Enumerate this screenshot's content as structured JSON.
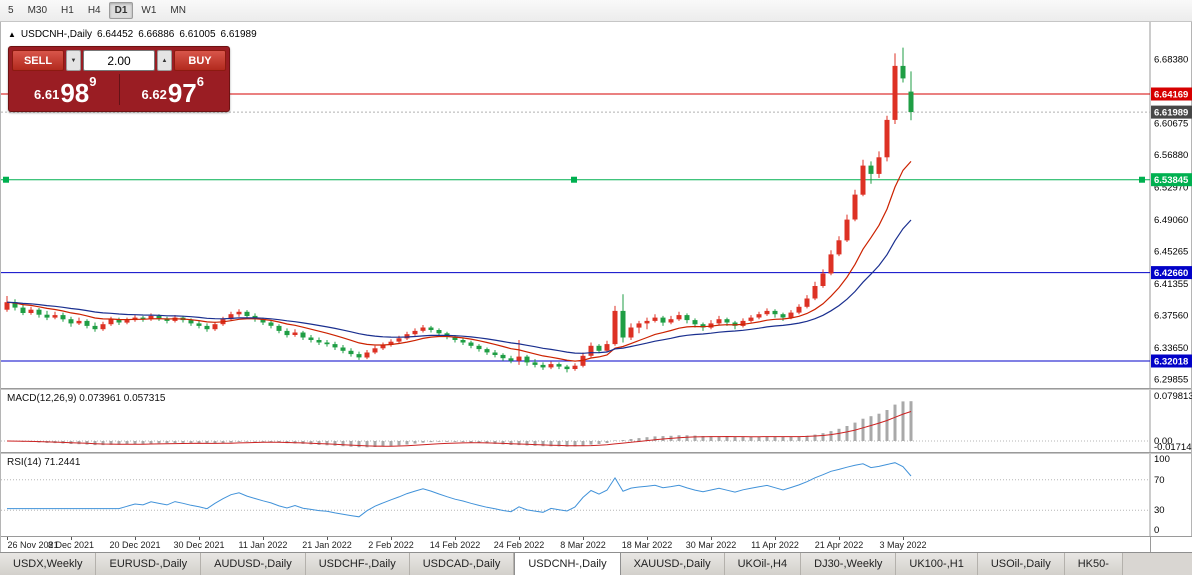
{
  "toolbar": {
    "timeframes": [
      {
        "label": "5",
        "active": false
      },
      {
        "label": "M30",
        "active": false
      },
      {
        "label": "H1",
        "active": false
      },
      {
        "label": "H4",
        "active": false
      },
      {
        "label": "D1",
        "active": true
      },
      {
        "label": "W1",
        "active": false
      },
      {
        "label": "MN",
        "active": false
      }
    ]
  },
  "chart_header": {
    "icon": "▲",
    "symbol": "USDCNH-,Daily",
    "open": "6.64452",
    "high": "6.66886",
    "low": "6.61005",
    "close": "6.61989"
  },
  "trade_panel": {
    "sell_label": "SELL",
    "buy_label": "BUY",
    "lot_value": "2.00",
    "lot_down_icon": "▼",
    "lot_up_icon": "▲",
    "bid": {
      "prefix": "6.61",
      "big": "98",
      "sup": "9"
    },
    "ask": {
      "prefix": "6.62",
      "big": "97",
      "sup": "6"
    }
  },
  "indicators": {
    "macd_label": "MACD(12,26,9) 0.073961 0.057315",
    "rsi_label": "RSI(14) 71.2441"
  },
  "colors": {
    "bull": "#dd3124",
    "bear": "#1f9e44",
    "macd_hist": "#a9a9a9",
    "macd_signal": "#cc2222",
    "rsi_line": "#4192d9"
  },
  "chart_data": {
    "type": "candlestick",
    "title": "USDCNH-,Daily",
    "ohlc_current": {
      "open": 6.64452,
      "high": 6.66886,
      "low": 6.61005,
      "close": 6.61989
    },
    "ylim": [
      6.2878,
      6.7283
    ],
    "x_tick_labels": [
      "26 Nov 2021",
      "8 Dec 2021",
      "20 Dec 2021",
      "30 Dec 2021",
      "11 Jan 2022",
      "21 Jan 2022",
      "2 Feb 2022",
      "14 Feb 2022",
      "24 Feb 2022",
      "8 Mar 2022",
      "18 Mar 2022",
      "30 Mar 2022",
      "11 Apr 2022",
      "21 Apr 2022",
      "3 May 2022"
    ],
    "ticks_every": 8,
    "y_axis_labels": [
      "6.68380",
      "6.60675",
      "6.56880",
      "6.52970",
      "6.49060",
      "6.45265",
      "6.41355",
      "6.37560",
      "6.33650",
      "6.29855"
    ],
    "price_lines": [
      {
        "price": 6.64169,
        "label": "6.64169",
        "line": "#d60000",
        "tag_bg": "#d60000",
        "style": "solid"
      },
      {
        "price": 6.61989,
        "label": "6.61989",
        "line": "#b0b0b0",
        "tag_bg": "#474747",
        "style": "dotted"
      },
      {
        "price": 6.53845,
        "label": "6.53845",
        "line": "#00b050",
        "tag_bg": "#00b050",
        "style": "solid",
        "handles": true
      },
      {
        "price": 6.4266,
        "label": "6.42660",
        "line": "#0202c8",
        "tag_bg": "#0202c8",
        "style": "solid"
      },
      {
        "price": 6.32018,
        "label": "6.32018",
        "line": "#0202c8",
        "tag_bg": "#0202c8",
        "style": "solid"
      }
    ],
    "moving_averages": [
      {
        "period": 12,
        "color": "#cc2200"
      },
      {
        "period": 26,
        "color": "#1a2f8f"
      }
    ],
    "macd": {
      "fast": 12,
      "slow": 26,
      "signal": 9,
      "axis": [
        "0.079813",
        "0.00",
        "-0.01714"
      ],
      "range": [
        -0.01714,
        0.079813
      ]
    },
    "rsi": {
      "period": 14,
      "levels": [
        100,
        70,
        30,
        0
      ],
      "value": 71.2441
    },
    "candles": [
      [
        6.382,
        6.3985,
        6.3795,
        6.391
      ],
      [
        6.391,
        6.3945,
        6.381,
        6.3845
      ],
      [
        6.3845,
        6.389,
        6.3755,
        6.378
      ],
      [
        6.378,
        6.3855,
        6.376,
        6.382
      ],
      [
        6.382,
        6.384,
        6.3725,
        6.376
      ],
      [
        6.376,
        6.3805,
        6.3695,
        6.3725
      ],
      [
        6.3725,
        6.3795,
        6.3705,
        6.3755
      ],
      [
        6.3755,
        6.3785,
        6.3675,
        6.3705
      ],
      [
        6.3705,
        6.3735,
        6.3615,
        6.3655
      ],
      [
        6.3655,
        6.3725,
        6.3635,
        6.3685
      ],
      [
        6.3685,
        6.3705,
        6.3595,
        6.3625
      ],
      [
        6.3625,
        6.3665,
        6.3555,
        6.3585
      ],
      [
        6.3585,
        6.3675,
        6.3565,
        6.3645
      ],
      [
        6.3645,
        6.3735,
        6.3625,
        6.3705
      ],
      [
        6.3705,
        6.3725,
        6.3635,
        6.3665
      ],
      [
        6.3665,
        6.3725,
        6.3645,
        6.3695
      ],
      [
        6.3695,
        6.3755,
        6.3675,
        6.3725
      ],
      [
        6.3725,
        6.3745,
        6.3675,
        6.3705
      ],
      [
        6.3705,
        6.3775,
        6.3685,
        6.3745
      ],
      [
        6.3745,
        6.3765,
        6.3685,
        6.3715
      ],
      [
        6.3715,
        6.3735,
        6.3655,
        6.3685
      ],
      [
        6.3685,
        6.3755,
        6.3665,
        6.3725
      ],
      [
        6.3725,
        6.3745,
        6.3665,
        6.3695
      ],
      [
        6.3695,
        6.3715,
        6.3625,
        6.3655
      ],
      [
        6.3655,
        6.3685,
        6.3595,
        6.3625
      ],
      [
        6.3625,
        6.3655,
        6.3555,
        6.3585
      ],
      [
        6.3585,
        6.3675,
        6.3565,
        6.3645
      ],
      [
        6.3645,
        6.3735,
        6.3625,
        6.3705
      ],
      [
        6.3705,
        6.3795,
        6.3685,
        6.3765
      ],
      [
        6.3765,
        6.3825,
        6.3735,
        6.3795
      ],
      [
        6.3795,
        6.3815,
        6.3715,
        6.3745
      ],
      [
        6.3745,
        6.3775,
        6.3675,
        6.3705
      ],
      [
        6.3705,
        6.3725,
        6.3635,
        6.3665
      ],
      [
        6.3665,
        6.3695,
        6.3595,
        6.3625
      ],
      [
        6.3625,
        6.3645,
        6.3535,
        6.3565
      ],
      [
        6.3565,
        6.3595,
        6.3485,
        6.3515
      ],
      [
        6.3515,
        6.3585,
        6.3495,
        6.3545
      ],
      [
        6.3545,
        6.3565,
        6.3455,
        6.3485
      ],
      [
        6.3485,
        6.3515,
        6.3425,
        6.3455
      ],
      [
        6.3455,
        6.3485,
        6.3395,
        6.3425
      ],
      [
        6.3425,
        6.3455,
        6.3375,
        6.3405
      ],
      [
        6.3405,
        6.3435,
        6.3335,
        6.3365
      ],
      [
        6.3365,
        6.3395,
        6.3295,
        6.3325
      ],
      [
        6.3325,
        6.3355,
        6.3255,
        6.3285
      ],
      [
        6.3285,
        6.3315,
        6.3215,
        6.3245
      ],
      [
        6.3245,
        6.3335,
        6.3225,
        6.3305
      ],
      [
        6.3305,
        6.3385,
        6.3285,
        6.3355
      ],
      [
        6.3355,
        6.3425,
        6.3335,
        6.3395
      ],
      [
        6.3395,
        6.3465,
        6.3375,
        6.3435
      ],
      [
        6.3435,
        6.3505,
        6.3415,
        6.3475
      ],
      [
        6.3475,
        6.3555,
        6.3455,
        6.3525
      ],
      [
        6.3525,
        6.3595,
        6.3505,
        6.3565
      ],
      [
        6.3565,
        6.3635,
        6.3545,
        6.3605
      ],
      [
        6.3605,
        6.3625,
        6.3545,
        6.3575
      ],
      [
        6.3575,
        6.3595,
        6.3505,
        6.3535
      ],
      [
        6.3535,
        6.3555,
        6.3465,
        6.3495
      ],
      [
        6.3495,
        6.3515,
        6.3425,
        6.3455
      ],
      [
        6.3455,
        6.3485,
        6.3395,
        6.3425
      ],
      [
        6.3425,
        6.3445,
        6.3355,
        6.3385
      ],
      [
        6.3385,
        6.3405,
        6.3315,
        6.3345
      ],
      [
        6.3345,
        6.3365,
        6.3275,
        6.3305
      ],
      [
        6.3305,
        6.3335,
        6.3245,
        6.3275
      ],
      [
        6.3275,
        6.3295,
        6.3205,
        6.3235
      ],
      [
        6.3235,
        6.3265,
        6.3175,
        6.3205
      ],
      [
        6.3205,
        6.3455,
        6.3155,
        6.3255
      ],
      [
        6.3255,
        6.3275,
        6.3145,
        6.3185
      ],
      [
        6.3185,
        6.3225,
        6.3125,
        6.3155
      ],
      [
        6.3155,
        6.3185,
        6.3095,
        6.3125
      ],
      [
        6.3125,
        6.3195,
        6.3105,
        6.3165
      ],
      [
        6.3165,
        6.3185,
        6.3105,
        6.3135
      ],
      [
        6.3135,
        6.3155,
        6.3065,
        6.3105
      ],
      [
        6.3105,
        6.3175,
        6.3085,
        6.3145
      ],
      [
        6.3145,
        6.3305,
        6.3125,
        6.3265
      ],
      [
        6.3265,
        6.3425,
        6.3245,
        6.3385
      ],
      [
        6.3385,
        6.3405,
        6.3295,
        6.3325
      ],
      [
        6.3325,
        6.3445,
        6.3305,
        6.3405
      ],
      [
        6.3405,
        6.3865,
        6.3385,
        6.3805
      ],
      [
        6.3805,
        6.4005,
        6.3425,
        6.3485
      ],
      [
        6.3485,
        6.3655,
        6.3455,
        6.3605
      ],
      [
        6.3605,
        6.3685,
        6.3535,
        6.3655
      ],
      [
        6.3655,
        6.3725,
        6.3585,
        6.3685
      ],
      [
        6.3685,
        6.3765,
        6.3665,
        6.3725
      ],
      [
        6.3725,
        6.3745,
        6.3625,
        6.3665
      ],
      [
        6.3665,
        6.3745,
        6.3645,
        6.3705
      ],
      [
        6.3705,
        6.3795,
        6.3685,
        6.3755
      ],
      [
        6.3755,
        6.3775,
        6.3655,
        6.3695
      ],
      [
        6.3695,
        6.3715,
        6.3605,
        6.3645
      ],
      [
        6.3645,
        6.3665,
        6.3565,
        6.3605
      ],
      [
        6.3605,
        6.3695,
        6.3585,
        6.3655
      ],
      [
        6.3655,
        6.3745,
        6.3635,
        6.3705
      ],
      [
        6.3705,
        6.3725,
        6.3625,
        6.3665
      ],
      [
        6.3665,
        6.3685,
        6.3585,
        6.3625
      ],
      [
        6.3625,
        6.3715,
        6.3605,
        6.3685
      ],
      [
        6.3685,
        6.3755,
        6.3665,
        6.3725
      ],
      [
        6.3725,
        6.3795,
        6.3705,
        6.3765
      ],
      [
        6.3765,
        6.3835,
        6.3745,
        6.3805
      ],
      [
        6.3805,
        6.3825,
        6.3725,
        6.3765
      ],
      [
        6.3765,
        6.3785,
        6.3685,
        6.3725
      ],
      [
        6.3725,
        6.3815,
        6.3705,
        6.3785
      ],
      [
        6.3785,
        6.3885,
        6.3765,
        6.3855
      ],
      [
        6.3855,
        6.3995,
        6.3835,
        6.3955
      ],
      [
        6.3955,
        6.4155,
        6.3935,
        6.4105
      ],
      [
        6.4105,
        6.4305,
        6.4085,
        6.4255
      ],
      [
        6.4255,
        6.4535,
        6.4235,
        6.4485
      ],
      [
        6.4485,
        6.4705,
        6.4465,
        6.4655
      ],
      [
        6.4655,
        6.4965,
        6.4635,
        6.4905
      ],
      [
        6.4905,
        6.5265,
        6.4885,
        6.5205
      ],
      [
        6.5205,
        6.5625,
        6.5185,
        6.5555
      ],
      [
        6.5555,
        6.5605,
        6.5335,
        6.5455
      ],
      [
        6.5455,
        6.5725,
        6.5405,
        6.5655
      ],
      [
        6.5655,
        6.6155,
        6.5605,
        6.6105
      ],
      [
        6.6105,
        6.6905,
        6.6055,
        6.6755
      ],
      [
        6.6755,
        6.6975,
        6.6555,
        6.6605
      ],
      [
        6.6445,
        6.6689,
        6.6101,
        6.6199
      ]
    ]
  },
  "tabs": [
    {
      "label": "USDX,Weekly",
      "active": false
    },
    {
      "label": "EURUSD-,Daily",
      "active": false
    },
    {
      "label": "AUDUSD-,Daily",
      "active": false
    },
    {
      "label": "USDCHF-,Daily",
      "active": false
    },
    {
      "label": "USDCAD-,Daily",
      "active": false
    },
    {
      "label": "USDCNH-,Daily",
      "active": true
    },
    {
      "label": "XAUUSD-,Daily",
      "active": false
    },
    {
      "label": "UKOil-,H4",
      "active": false
    },
    {
      "label": "DJ30-,Weekly",
      "active": false
    },
    {
      "label": "UK100-,H1",
      "active": false
    },
    {
      "label": "USOil-,Daily",
      "active": false
    },
    {
      "label": "HK50-",
      "active": false
    }
  ]
}
